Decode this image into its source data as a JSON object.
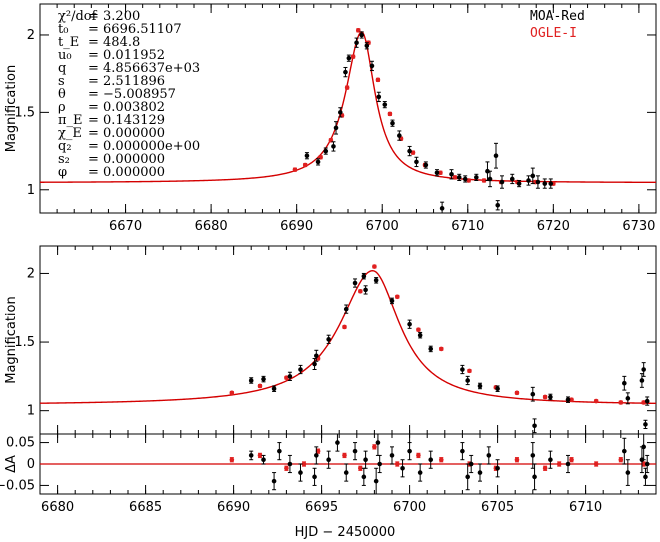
{
  "colors": {
    "moa": "#000000",
    "ogle": "#e02020",
    "model": "#d40000",
    "axis": "#000000"
  },
  "legend": {
    "moa": "MOA-Red",
    "ogle": "OGLE-I"
  },
  "params": [
    {
      "label": "χ²/dof",
      "value": "= 3.200"
    },
    {
      "label": "t₀",
      "value": "= 6696.51107"
    },
    {
      "label": "t_E",
      "value": "= 484.8"
    },
    {
      "label": "u₀",
      "value": "= 0.011952"
    },
    {
      "label": "q",
      "value": "= 4.856637e+03"
    },
    {
      "label": "s",
      "value": "= 2.511896"
    },
    {
      "label": "θ",
      "value": "= −5.008957"
    },
    {
      "label": "ρ",
      "value": "= 0.003802"
    },
    {
      "label": "π_E",
      "value": "= 0.143129"
    },
    {
      "label": "χ_E",
      "value": "= 0.000000"
    },
    {
      "label": "q₂",
      "value": "= 0.000000e+00"
    },
    {
      "label": "s₂",
      "value": "= 0.000000"
    },
    {
      "label": "φ",
      "value": "= 0.000000"
    }
  ],
  "xlabel": "HJD − 2450000",
  "chart_data": [
    {
      "id": "top",
      "type": "scatter",
      "ylabel": "Magnification",
      "xlim": [
        6660,
        6732
      ],
      "ylim": [
        0.85,
        2.2
      ],
      "xticks": [
        6670,
        6680,
        6690,
        6700,
        6710,
        6720,
        6730
      ],
      "yticks": [
        1,
        1.5,
        2
      ],
      "ytick_labels": [
        "1",
        "1.5",
        "2"
      ],
      "model": {
        "t0": 6697.6,
        "peak": 2.02,
        "base": 1.045,
        "tau_left": 2.3,
        "tau_right": 1.9
      },
      "moa": [
        [
          6691.2,
          1.22,
          0.02
        ],
        [
          6692.5,
          1.18,
          0.02
        ],
        [
          6693.4,
          1.25,
          0.02
        ],
        [
          6694.3,
          1.28,
          0.03
        ],
        [
          6694.6,
          1.4,
          0.04
        ],
        [
          6695.1,
          1.5,
          0.03
        ],
        [
          6695.7,
          1.76,
          0.03
        ],
        [
          6696.1,
          1.85,
          0.02
        ],
        [
          6697.0,
          1.95,
          0.03
        ],
        [
          6697.6,
          2.0,
          0.02
        ],
        [
          6698.2,
          1.93,
          0.02
        ],
        [
          6698.8,
          1.8,
          0.03
        ],
        [
          6699.6,
          1.6,
          0.03
        ],
        [
          6700.3,
          1.55,
          0.02
        ],
        [
          6701.2,
          1.43,
          0.02
        ],
        [
          6702.0,
          1.35,
          0.03
        ],
        [
          6703.2,
          1.25,
          0.03
        ],
        [
          6704.0,
          1.18,
          0.03
        ],
        [
          6705.1,
          1.16,
          0.02
        ],
        [
          6706.4,
          1.11,
          0.02
        ],
        [
          6707.0,
          0.88,
          0.04
        ],
        [
          6708.1,
          1.1,
          0.03
        ],
        [
          6709.0,
          1.08,
          0.02
        ],
        [
          6709.7,
          1.07,
          0.02
        ],
        [
          6711.0,
          1.08,
          0.02
        ],
        [
          6712.3,
          1.12,
          0.06
        ],
        [
          6712.6,
          1.07,
          0.05
        ],
        [
          6713.3,
          1.22,
          0.08
        ],
        [
          6713.5,
          0.9,
          0.03
        ],
        [
          6714.0,
          1.05,
          0.04
        ],
        [
          6715.2,
          1.07,
          0.03
        ],
        [
          6716.0,
          1.04,
          0.02
        ],
        [
          6717.1,
          1.06,
          0.03
        ],
        [
          6717.6,
          1.09,
          0.05
        ],
        [
          6718.2,
          1.05,
          0.04
        ],
        [
          6719.0,
          1.04,
          0.03
        ],
        [
          6719.7,
          1.04,
          0.03
        ]
      ],
      "ogle": [
        [
          6689.8,
          1.13,
          0.01
        ],
        [
          6691.0,
          1.16,
          0.01
        ],
        [
          6692.8,
          1.21,
          0.01
        ],
        [
          6694.0,
          1.32,
          0.01
        ],
        [
          6695.3,
          1.48,
          0.01
        ],
        [
          6695.9,
          1.66,
          0.01
        ],
        [
          6696.6,
          1.86,
          0.01
        ],
        [
          6697.2,
          2.03,
          0.01
        ],
        [
          6698.4,
          1.95,
          0.01
        ],
        [
          6699.5,
          1.71,
          0.01
        ],
        [
          6700.9,
          1.49,
          0.01
        ],
        [
          6702.2,
          1.33,
          0.01
        ],
        [
          6703.6,
          1.24,
          0.01
        ],
        [
          6705.0,
          1.16,
          0.01
        ],
        [
          6706.8,
          1.11,
          0.01
        ],
        [
          6708.5,
          1.08,
          0.01
        ],
        [
          6710.1,
          1.06,
          0.01
        ],
        [
          6711.9,
          1.06,
          0.01
        ],
        [
          6713.9,
          1.05,
          0.01
        ],
        [
          6715.8,
          1.05,
          0.01
        ],
        [
          6717.9,
          1.05,
          0.01
        ],
        [
          6720.0,
          1.04,
          0.01
        ]
      ]
    },
    {
      "id": "zoom",
      "type": "scatter",
      "ylabel": "Magnification",
      "xlim": [
        6679,
        6714
      ],
      "ylim": [
        0.83,
        2.2
      ],
      "xticks": [
        6680,
        6685,
        6690,
        6695,
        6700,
        6705,
        6710
      ],
      "yticks": [
        1,
        1.5,
        2
      ],
      "ytick_labels": [
        "1",
        "1.5",
        "2"
      ],
      "model": {
        "t0": 6697.9,
        "peak": 2.02,
        "base": 1.04,
        "tau_left": 2.3,
        "tau_right": 1.9
      },
      "moa": [
        [
          6691.0,
          1.22,
          0.02
        ],
        [
          6691.7,
          1.23,
          0.02
        ],
        [
          6692.3,
          1.16,
          0.02
        ],
        [
          6693.2,
          1.25,
          0.03
        ],
        [
          6693.8,
          1.3,
          0.03
        ],
        [
          6694.6,
          1.34,
          0.04
        ],
        [
          6694.7,
          1.4,
          0.04
        ],
        [
          6695.4,
          1.52,
          0.03
        ],
        [
          6696.4,
          1.74,
          0.03
        ],
        [
          6696.9,
          1.93,
          0.03
        ],
        [
          6697.4,
          1.98,
          0.02
        ],
        [
          6697.5,
          1.88,
          0.03
        ],
        [
          6698.1,
          1.95,
          0.02
        ],
        [
          6699.0,
          1.8,
          0.02
        ],
        [
          6700.0,
          1.63,
          0.03
        ],
        [
          6700.6,
          1.55,
          0.02
        ],
        [
          6701.2,
          1.45,
          0.02
        ],
        [
          6703.0,
          1.3,
          0.03
        ],
        [
          6703.3,
          1.22,
          0.03
        ],
        [
          6704.0,
          1.18,
          0.02
        ],
        [
          6705.0,
          1.16,
          0.02
        ],
        [
          6707.0,
          1.12,
          0.05
        ],
        [
          6707.1,
          0.89,
          0.05
        ],
        [
          6708.0,
          1.1,
          0.02
        ],
        [
          6709.0,
          1.08,
          0.02
        ],
        [
          6712.2,
          1.2,
          0.05
        ],
        [
          6712.4,
          1.09,
          0.04
        ],
        [
          6713.2,
          1.22,
          0.05
        ],
        [
          6713.3,
          1.3,
          0.05
        ],
        [
          6713.4,
          0.9,
          0.03
        ],
        [
          6713.5,
          1.07,
          0.03
        ]
      ],
      "ogle": [
        [
          6689.9,
          1.13,
          0.01
        ],
        [
          6691.5,
          1.18,
          0.01
        ],
        [
          6693.0,
          1.24,
          0.01
        ],
        [
          6694.8,
          1.38,
          0.01
        ],
        [
          6696.3,
          1.61,
          0.01
        ],
        [
          6697.2,
          1.87,
          0.01
        ],
        [
          6698.0,
          2.05,
          0.01
        ],
        [
          6699.3,
          1.83,
          0.01
        ],
        [
          6700.5,
          1.59,
          0.01
        ],
        [
          6701.8,
          1.45,
          0.01
        ],
        [
          6703.4,
          1.29,
          0.01
        ],
        [
          6704.9,
          1.17,
          0.01
        ],
        [
          6706.1,
          1.13,
          0.01
        ],
        [
          6707.7,
          1.1,
          0.01
        ],
        [
          6709.2,
          1.08,
          0.01
        ],
        [
          6710.6,
          1.07,
          0.01
        ],
        [
          6712.0,
          1.06,
          0.01
        ],
        [
          6713.3,
          1.06,
          0.01
        ]
      ]
    },
    {
      "id": "resid",
      "type": "scatter",
      "ylabel": "ΔA",
      "xlim": [
        6679,
        6714
      ],
      "ylim": [
        -0.07,
        0.07
      ],
      "xticks": [
        6680,
        6685,
        6690,
        6695,
        6700,
        6705,
        6710
      ],
      "xtick_labels": [
        "6680",
        "6685",
        "6690",
        "6695",
        "6700",
        "6705",
        "6710"
      ],
      "yticks": [
        -0.05,
        0,
        0.05
      ],
      "ytick_labels": [
        "−0.05",
        "0",
        "0.05"
      ],
      "moa": [
        [
          6691.0,
          0.02,
          0.01
        ],
        [
          6691.7,
          0.01,
          0.01
        ],
        [
          6692.3,
          -0.04,
          0.02
        ],
        [
          6692.6,
          0.03,
          0.02
        ],
        [
          6693.2,
          0.0,
          0.02
        ],
        [
          6693.8,
          -0.02,
          0.02
        ],
        [
          6694.6,
          -0.03,
          0.02
        ],
        [
          6694.7,
          0.02,
          0.02
        ],
        [
          6695.4,
          0.01,
          0.02
        ],
        [
          6695.9,
          0.05,
          0.02
        ],
        [
          6696.4,
          -0.02,
          0.02
        ],
        [
          6696.9,
          0.03,
          0.02
        ],
        [
          6697.4,
          -0.03,
          0.02
        ],
        [
          6697.5,
          0.01,
          0.02
        ],
        [
          6698.1,
          -0.04,
          0.03
        ],
        [
          6698.2,
          0.05,
          0.03
        ],
        [
          6698.3,
          0.0,
          0.02
        ],
        [
          6699.0,
          0.02,
          0.02
        ],
        [
          6699.6,
          -0.01,
          0.02
        ],
        [
          6700.0,
          0.03,
          0.02
        ],
        [
          6700.6,
          -0.02,
          0.02
        ],
        [
          6701.2,
          0.01,
          0.02
        ],
        [
          6703.0,
          0.03,
          0.02
        ],
        [
          6703.3,
          -0.03,
          0.03
        ],
        [
          6703.5,
          0.0,
          0.02
        ],
        [
          6704.0,
          -0.02,
          0.02
        ],
        [
          6704.5,
          0.02,
          0.02
        ],
        [
          6705.0,
          -0.01,
          0.02
        ],
        [
          6707.0,
          0.02,
          0.03
        ],
        [
          6707.1,
          -0.03,
          0.03
        ],
        [
          6708.0,
          0.01,
          0.02
        ],
        [
          6709.0,
          0.0,
          0.02
        ],
        [
          6712.2,
          0.03,
          0.03
        ],
        [
          6712.4,
          -0.02,
          0.03
        ],
        [
          6713.2,
          0.01,
          0.03
        ],
        [
          6713.3,
          0.04,
          0.03
        ],
        [
          6713.4,
          -0.03,
          0.02
        ],
        [
          6713.5,
          0.0,
          0.02
        ]
      ],
      "ogle": [
        [
          6689.9,
          0.01,
          0.005
        ],
        [
          6691.5,
          0.02,
          0.005
        ],
        [
          6693.0,
          -0.01,
          0.005
        ],
        [
          6694.0,
          0.0,
          0.005
        ],
        [
          6694.8,
          0.03,
          0.005
        ],
        [
          6696.3,
          0.02,
          0.005
        ],
        [
          6697.2,
          -0.01,
          0.005
        ],
        [
          6698.0,
          0.04,
          0.005
        ],
        [
          6699.3,
          0.0,
          0.005
        ],
        [
          6700.5,
          0.02,
          0.005
        ],
        [
          6701.8,
          0.01,
          0.005
        ],
        [
          6703.4,
          0.0,
          0.005
        ],
        [
          6704.9,
          -0.01,
          0.005
        ],
        [
          6706.1,
          0.01,
          0.005
        ],
        [
          6707.7,
          -0.01,
          0.005
        ],
        [
          6708.5,
          0.0,
          0.005
        ],
        [
          6709.2,
          0.01,
          0.005
        ],
        [
          6710.6,
          0.0,
          0.005
        ],
        [
          6712.0,
          0.01,
          0.005
        ],
        [
          6713.3,
          0.0,
          0.005
        ]
      ]
    }
  ]
}
